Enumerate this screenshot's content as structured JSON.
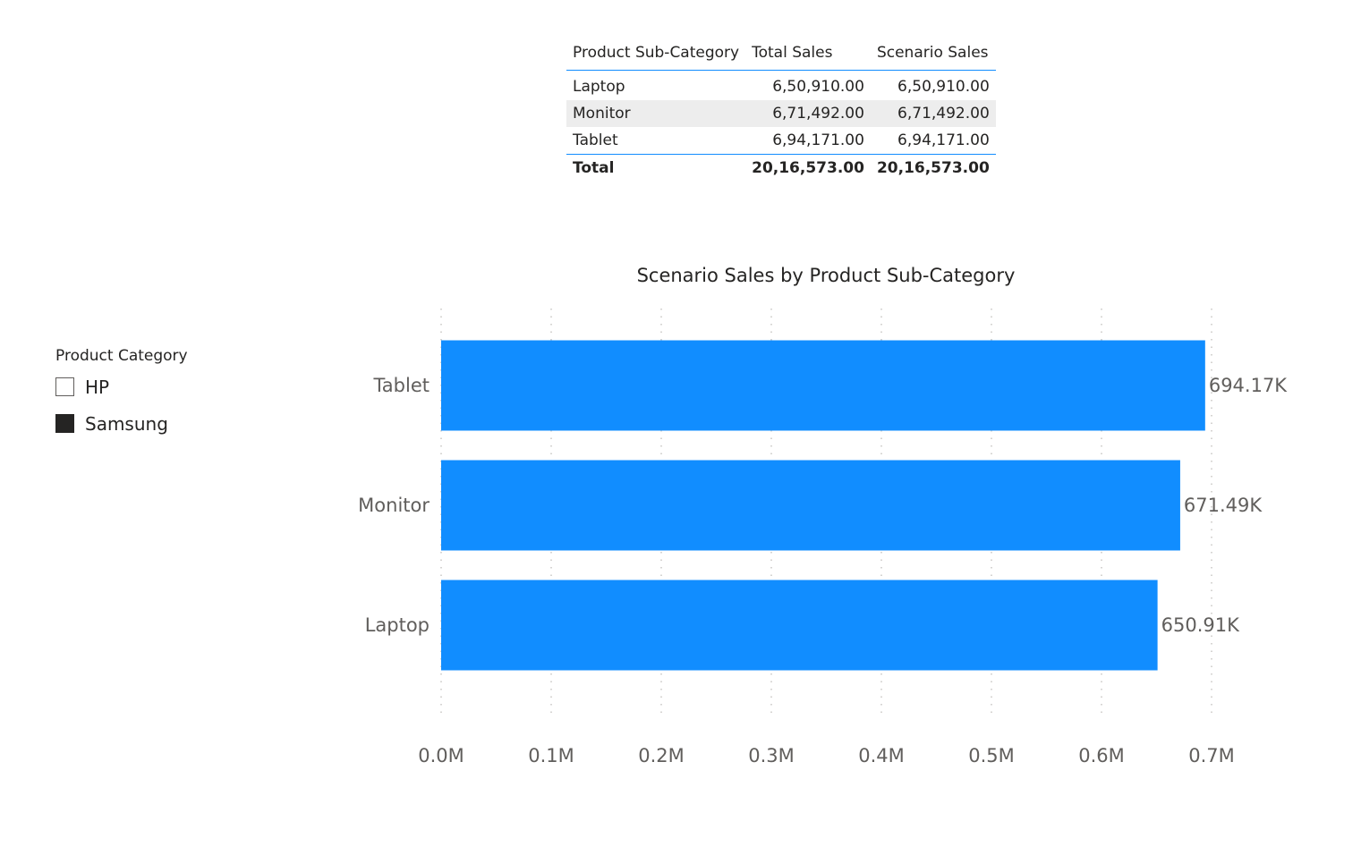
{
  "table": {
    "headers": [
      "Product Sub-Category",
      "Total Sales",
      "Scenario Sales"
    ],
    "rows": [
      [
        "Laptop",
        "6,50,910.00",
        "6,50,910.00"
      ],
      [
        "Monitor",
        "6,71,492.00",
        "6,71,492.00"
      ],
      [
        "Tablet",
        "6,94,171.00",
        "6,94,171.00"
      ]
    ],
    "total": [
      "Total",
      "20,16,573.00",
      "20,16,573.00"
    ],
    "accent_color": "#118DFF"
  },
  "slicer": {
    "title": "Product Category",
    "items": [
      {
        "label": "HP",
        "checked": false
      },
      {
        "label": "Samsung",
        "checked": true
      }
    ]
  },
  "chart_data": {
    "type": "bar",
    "orientation": "horizontal",
    "title": "Scenario Sales by Product Sub-Category",
    "categories": [
      "Tablet",
      "Monitor",
      "Laptop"
    ],
    "values": [
      694171,
      671492,
      650910
    ],
    "data_labels": [
      "694.17K",
      "671.49K",
      "650.91K"
    ],
    "xlabel": "",
    "ylabel": "",
    "xlim": [
      0,
      700000
    ],
    "xticks": [
      0,
      100000,
      200000,
      300000,
      400000,
      500000,
      600000,
      700000
    ],
    "xtick_labels": [
      "0.0M",
      "0.1M",
      "0.2M",
      "0.3M",
      "0.4M",
      "0.5M",
      "0.6M",
      "0.7M"
    ],
    "grid": true,
    "bar_color": "#118DFF"
  }
}
